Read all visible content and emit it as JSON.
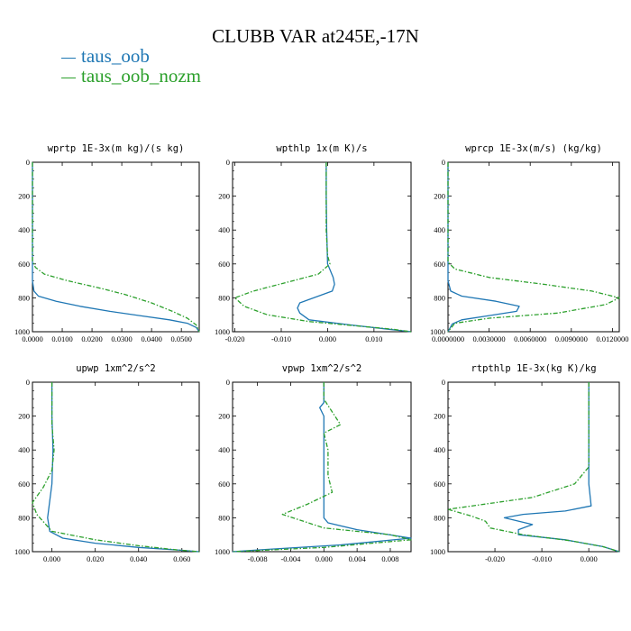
{
  "title": "CLUBB VAR at245E,-17N",
  "legend": [
    {
      "label": "taus_oob",
      "color": "#1f77b4"
    },
    {
      "label": "taus_oob_nozm",
      "color": "#2ca02c"
    }
  ],
  "chart_data": [
    {
      "type": "line",
      "title": "wprtp  1E-3x(m kg)/(s kg)",
      "xlim": [
        0,
        0.056
      ],
      "ylim": [
        0,
        1000
      ],
      "y_inverted": true,
      "xticks": [
        0.0,
        0.01,
        0.02,
        0.03,
        0.04,
        0.05
      ],
      "xtick_labels": [
        "0.0000",
        "0.0100",
        "0.0200",
        "0.0300",
        "0.0400",
        "0.0500"
      ],
      "yticks": [
        0,
        200,
        400,
        600,
        800,
        1000
      ],
      "ytick_labels": [
        "0",
        "200",
        "400",
        "600",
        "800",
        "1000"
      ],
      "series": [
        {
          "name": "taus_oob",
          "x": [
            0,
            0,
            0,
            0,
            0.0005,
            0.002,
            0.008,
            0.016,
            0.026,
            0.036,
            0.046,
            0.052,
            0.055,
            0.056
          ],
          "y": [
            0,
            200,
            400,
            700,
            760,
            790,
            820,
            850,
            880,
            905,
            930,
            950,
            975,
            1000
          ]
        },
        {
          "name": "taus_oob_nozm",
          "x": [
            0,
            0,
            0,
            0,
            0.001,
            0.004,
            0.012,
            0.022,
            0.031,
            0.04,
            0.047,
            0.052,
            0.055,
            0.056
          ],
          "y": [
            0,
            200,
            400,
            580,
            620,
            660,
            700,
            740,
            780,
            830,
            880,
            920,
            960,
            1000
          ]
        }
      ]
    },
    {
      "type": "line",
      "title": "wpthlp  1x(m K)/s",
      "xlim": [
        -0.0205,
        0.018
      ],
      "ylim": [
        0,
        1000
      ],
      "y_inverted": true,
      "xticks": [
        -0.02,
        -0.01,
        0.0,
        0.01
      ],
      "xtick_labels": [
        "-0.020",
        "-0.010",
        "0.000",
        "0.010"
      ],
      "yticks": [
        0,
        200,
        400,
        600,
        800,
        1000
      ],
      "ytick_labels": [
        "0",
        "200",
        "400",
        "600",
        "800",
        "1000"
      ],
      "series": [
        {
          "name": "taus_oob",
          "x": [
            -0.0003,
            -0.0003,
            -0.0002,
            0.0,
            0.0012,
            0.0015,
            0.001,
            -0.003,
            -0.006,
            -0.0065,
            -0.006,
            -0.004,
            0.005,
            0.013,
            0.018
          ],
          "y": [
            0,
            200,
            400,
            600,
            680,
            720,
            760,
            800,
            830,
            860,
            890,
            930,
            960,
            985,
            1000
          ]
        },
        {
          "name": "taus_oob_nozm",
          "x": [
            -0.0003,
            -0.0003,
            -0.0003,
            0.0,
            0.0005,
            -0.002,
            -0.009,
            -0.016,
            -0.02,
            -0.018,
            -0.013,
            -0.004,
            0.006,
            0.014,
            0.018
          ],
          "y": [
            0,
            200,
            400,
            550,
            600,
            660,
            710,
            760,
            800,
            850,
            900,
            940,
            965,
            985,
            1000
          ]
        }
      ]
    },
    {
      "type": "line",
      "title": "wprcp  1E-3x(m/s) (kg/kg)",
      "xlim": [
        0,
        0.0125
      ],
      "ylim": [
        0,
        1000
      ],
      "y_inverted": true,
      "xticks": [
        0,
        0.003,
        0.006,
        0.009,
        0.012
      ],
      "xtick_labels": [
        "0.0000000",
        "0.0030000",
        "0.0060000",
        "0.0090000",
        "0.0120000"
      ],
      "yticks": [
        0,
        200,
        400,
        600,
        800,
        1000
      ],
      "ytick_labels": [
        "0",
        "200",
        "400",
        "600",
        "800",
        "1000"
      ],
      "series": [
        {
          "name": "taus_oob",
          "x": [
            0,
            0,
            0,
            0.0002,
            0.001,
            0.0035,
            0.0052,
            0.005,
            0.003,
            0.001,
            0.0003,
            0.0
          ],
          "y": [
            0,
            400,
            700,
            760,
            790,
            820,
            850,
            880,
            905,
            930,
            955,
            1000
          ]
        },
        {
          "name": "taus_oob_nozm",
          "x": [
            0,
            0,
            0,
            0.0005,
            0.003,
            0.007,
            0.0105,
            0.0125,
            0.0115,
            0.008,
            0.003,
            0.0005,
            0.0
          ],
          "y": [
            0,
            400,
            590,
            630,
            680,
            720,
            760,
            800,
            840,
            890,
            920,
            950,
            1000
          ]
        }
      ]
    },
    {
      "type": "line",
      "title": "upwp  1xm^2/s^2",
      "xlim": [
        -0.009,
        0.068
      ],
      "ylim": [
        0,
        1000
      ],
      "y_inverted": true,
      "xticks": [
        0.0,
        0.02,
        0.04,
        0.06
      ],
      "xtick_labels": [
        "0.000",
        "0.020",
        "0.040",
        "0.060"
      ],
      "yticks": [
        0,
        200,
        400,
        600,
        800,
        1000
      ],
      "ytick_labels": [
        "0",
        "200",
        "400",
        "600",
        "800",
        "1000"
      ],
      "series": [
        {
          "name": "taus_oob",
          "x": [
            0.0,
            0.0,
            0.0005,
            0.0,
            -0.001,
            -0.002,
            -0.001,
            0.005,
            0.02,
            0.04,
            0.058,
            0.068
          ],
          "y": [
            0,
            200,
            400,
            600,
            700,
            800,
            880,
            920,
            950,
            975,
            990,
            1000
          ]
        },
        {
          "name": "taus_oob_nozm",
          "x": [
            0.0,
            0.0,
            0.001,
            0.0,
            -0.004,
            -0.009,
            -0.007,
            0.0,
            0.02,
            0.04,
            0.058,
            0.068
          ],
          "y": [
            0,
            250,
            400,
            520,
            620,
            710,
            780,
            880,
            930,
            965,
            990,
            1000
          ]
        }
      ]
    },
    {
      "type": "line",
      "title": "vpwp  1xm^2/s^2",
      "xlim": [
        -0.011,
        0.0105
      ],
      "ylim": [
        0,
        1000
      ],
      "y_inverted": true,
      "xticks": [
        -0.008,
        -0.004,
        0.0,
        0.004,
        0.008
      ],
      "xtick_labels": [
        "-0.008",
        "-0.004",
        "0.000",
        "0.004",
        "0.008"
      ],
      "yticks": [
        0,
        200,
        400,
        600,
        800,
        1000
      ],
      "ytick_labels": [
        "0",
        "200",
        "400",
        "600",
        "800",
        "1000"
      ],
      "series": [
        {
          "name": "taus_oob",
          "x": [
            0.0,
            0.0,
            -0.0005,
            0.0,
            0.0,
            0.0,
            0.0,
            0.0,
            0.0005,
            0.004,
            0.0105,
            0.002,
            -0.008,
            -0.011
          ],
          "y": [
            0,
            120,
            150,
            200,
            300,
            500,
            700,
            800,
            830,
            870,
            920,
            960,
            990,
            1000
          ]
        },
        {
          "name": "taus_oob_nozm",
          "x": [
            0.0,
            0.0,
            0.002,
            0.0,
            0.0005,
            0.0005,
            0.001,
            -0.002,
            -0.005,
            0.0,
            0.008,
            0.0105,
            0.0,
            -0.011
          ],
          "y": [
            0,
            100,
            250,
            300,
            400,
            550,
            650,
            720,
            780,
            860,
            900,
            930,
            975,
            1000
          ]
        }
      ]
    },
    {
      "type": "line",
      "title": "rtpthlp  1E-3x(kg K)/kg",
      "xlim": [
        -0.03,
        0.0065
      ],
      "ylim": [
        0,
        1000
      ],
      "y_inverted": true,
      "xticks": [
        -0.02,
        -0.01,
        0.0
      ],
      "xtick_labels": [
        "-0.020",
        "-0.010",
        "0.000"
      ],
      "yticks": [
        0,
        200,
        400,
        600,
        800,
        1000
      ],
      "ytick_labels": [
        "0",
        "200",
        "400",
        "600",
        "800",
        "1000"
      ],
      "series": [
        {
          "name": "taus_oob",
          "x": [
            0.0,
            0.0,
            0.0,
            0.0005,
            -0.005,
            -0.014,
            -0.018,
            -0.012,
            -0.015,
            -0.015,
            -0.005,
            0.003,
            0.0065
          ],
          "y": [
            0,
            400,
            600,
            730,
            760,
            780,
            800,
            840,
            870,
            900,
            930,
            970,
            1000
          ]
        },
        {
          "name": "taus_oob_nozm",
          "x": [
            0.0,
            0.0,
            0.0,
            -0.003,
            -0.012,
            -0.03,
            -0.025,
            -0.022,
            -0.021,
            -0.014,
            -0.004,
            0.003,
            0.0065
          ],
          "y": [
            0,
            300,
            500,
            600,
            680,
            750,
            790,
            820,
            860,
            900,
            935,
            970,
            1000
          ]
        }
      ]
    }
  ]
}
